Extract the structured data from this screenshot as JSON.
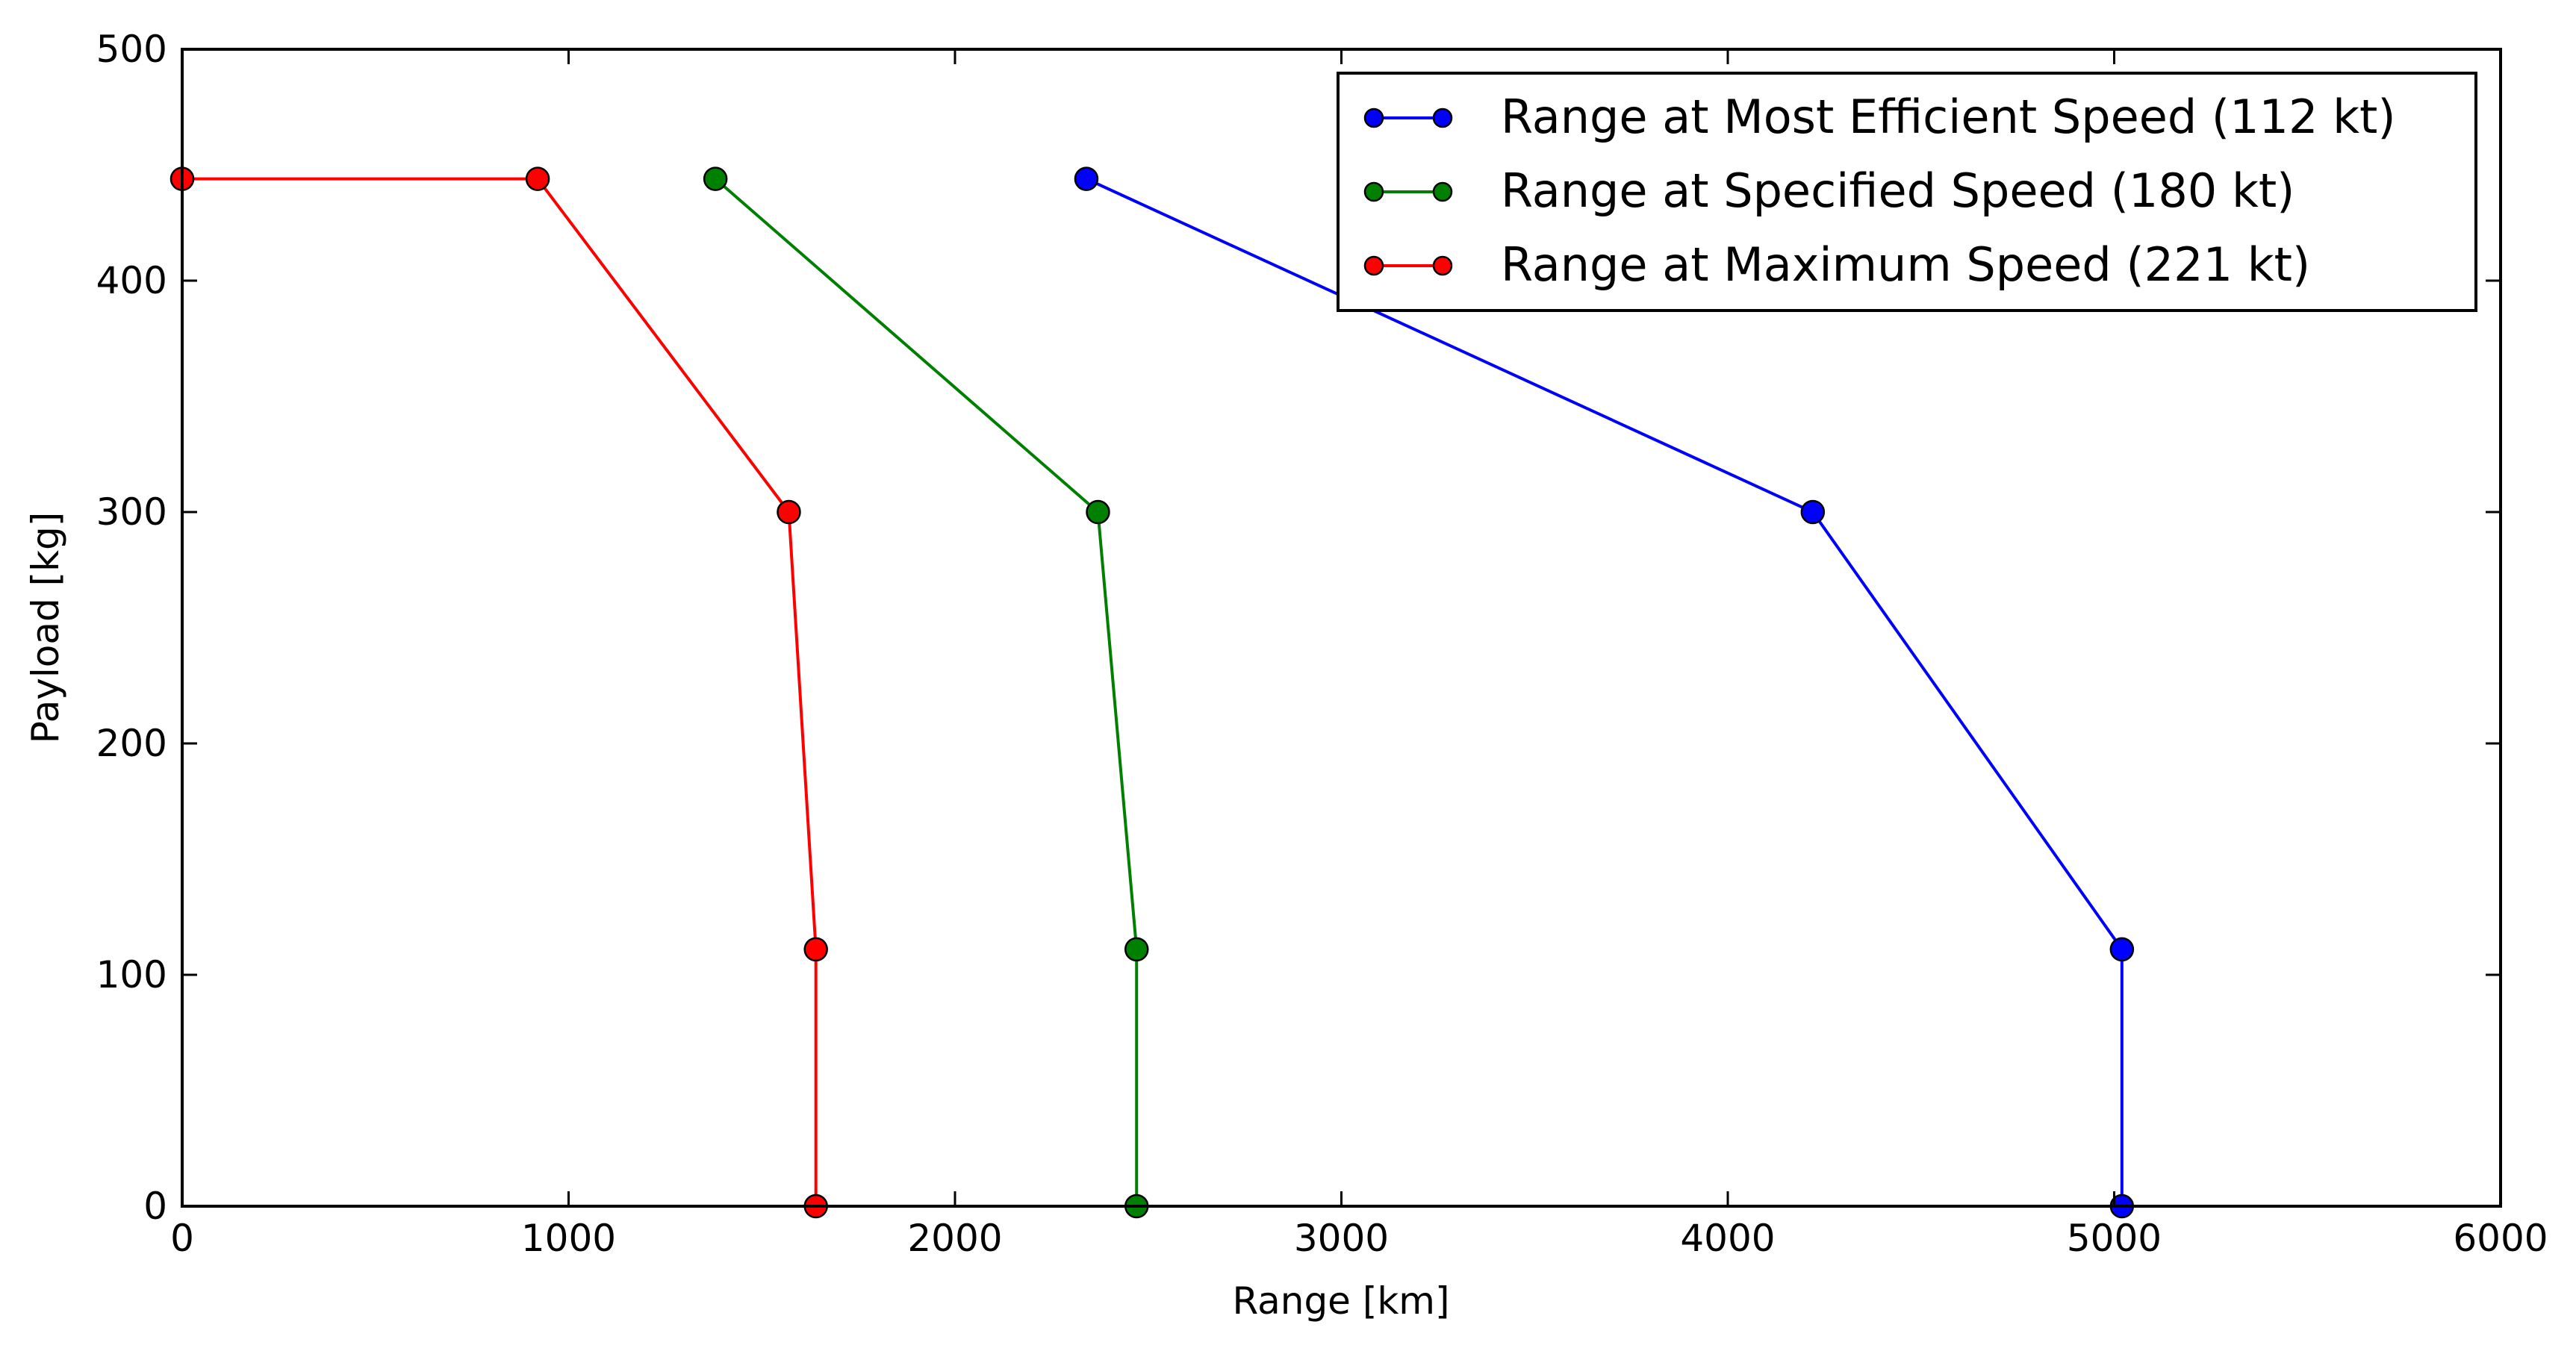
{
  "chart_data": {
    "type": "line",
    "title": "",
    "xlabel": "Range [km]",
    "ylabel": "Payload [kg]",
    "xlim": [
      0,
      6000
    ],
    "ylim": [
      0,
      500
    ],
    "xticks": [
      0,
      1000,
      2000,
      3000,
      4000,
      5000,
      6000
    ],
    "yticks": [
      0,
      100,
      200,
      300,
      400,
      500
    ],
    "xtick_labels": [
      "0",
      "1000",
      "2000",
      "3000",
      "4000",
      "5000",
      "6000"
    ],
    "ytick_labels": [
      "0",
      "100",
      "200",
      "300",
      "400",
      "500"
    ],
    "grid": false,
    "legend_position": "top-right",
    "series": [
      {
        "name": "Range at Most Efficient Speed (112 kt)",
        "color": "#0000ff",
        "x": [
          2340,
          4220,
          5020,
          5020
        ],
        "y": [
          444,
          300,
          111,
          0
        ]
      },
      {
        "name": "Range at Specified Speed (180 kt)",
        "color": "#008000",
        "x": [
          1380,
          2370,
          2470,
          2470
        ],
        "y": [
          444,
          300,
          111,
          0
        ]
      },
      {
        "name": "Range at Maximum Speed (221 kt)",
        "color": "#ff0000",
        "x": [
          0,
          920,
          1570,
          1640,
          1640
        ],
        "y": [
          444,
          444,
          300,
          111,
          0
        ]
      }
    ]
  }
}
